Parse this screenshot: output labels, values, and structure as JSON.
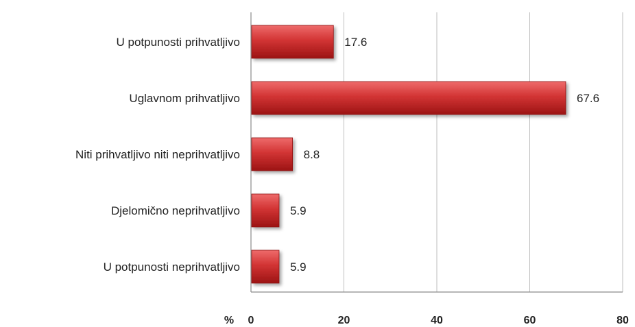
{
  "chart_data": {
    "type": "bar",
    "orientation": "horizontal",
    "categories": [
      "U potpunosti prihvatljivo",
      "Uglavnom prihvatljivo",
      "Niti prihvatljivo niti neprihvatljivo",
      "Djelomično neprihvatljivo",
      "U potpunosti neprihvatljivo"
    ],
    "values": [
      17.6,
      67.6,
      8.8,
      5.9,
      5.9
    ],
    "value_labels": [
      "17.6",
      "67.6",
      "8.8",
      "5.9",
      "5.9"
    ],
    "xlabel": "%",
    "xlim": [
      0,
      80
    ],
    "xticks": [
      "0",
      "20",
      "40",
      "60",
      "80"
    ],
    "grid": "vertical",
    "legend": "none",
    "bar_color": "#cc2b2b"
  }
}
